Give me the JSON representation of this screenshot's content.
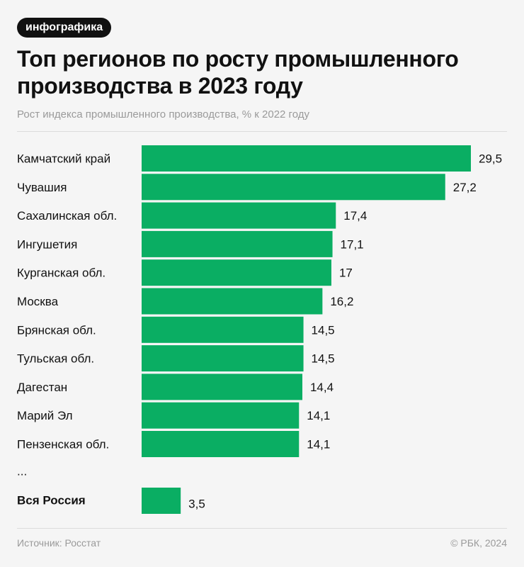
{
  "badge": "инфографика",
  "footer": {
    "source": "Источник: Росстат",
    "copyright": "© РБК, 2024"
  },
  "colors": {
    "bar": "#0aae63",
    "background": "#f5f5f5"
  },
  "chart_data": {
    "type": "bar",
    "orientation": "horizontal",
    "title": "Топ регионов по росту промышленного производства в 2023 году",
    "subtitle": "Рост индекса промышленного производства, % к 2022 году",
    "categories": [
      "Камчатский край",
      "Чувашия",
      "Сахалинская обл.",
      "Ингушетия",
      "Курганская обл.",
      "Москва",
      "Брянская обл.",
      "Тульская обл.",
      "Дагестан",
      "Марий Эл",
      "Пензенская обл."
    ],
    "values": [
      29.5,
      27.2,
      17.4,
      17.1,
      17,
      16.2,
      14.5,
      14.5,
      14.4,
      14.1,
      14.1
    ],
    "value_labels": [
      "29,5",
      "27,2",
      "17,4",
      "17,1",
      "17",
      "16,2",
      "14,5",
      "14,5",
      "14,4",
      "14,1",
      "14,1"
    ],
    "ellipsis": "...",
    "total": {
      "label": "Вся Россия",
      "value": 3.5,
      "value_label": "3,5"
    },
    "xlim": [
      0,
      29.5
    ],
    "grid": false,
    "legend": "none"
  }
}
